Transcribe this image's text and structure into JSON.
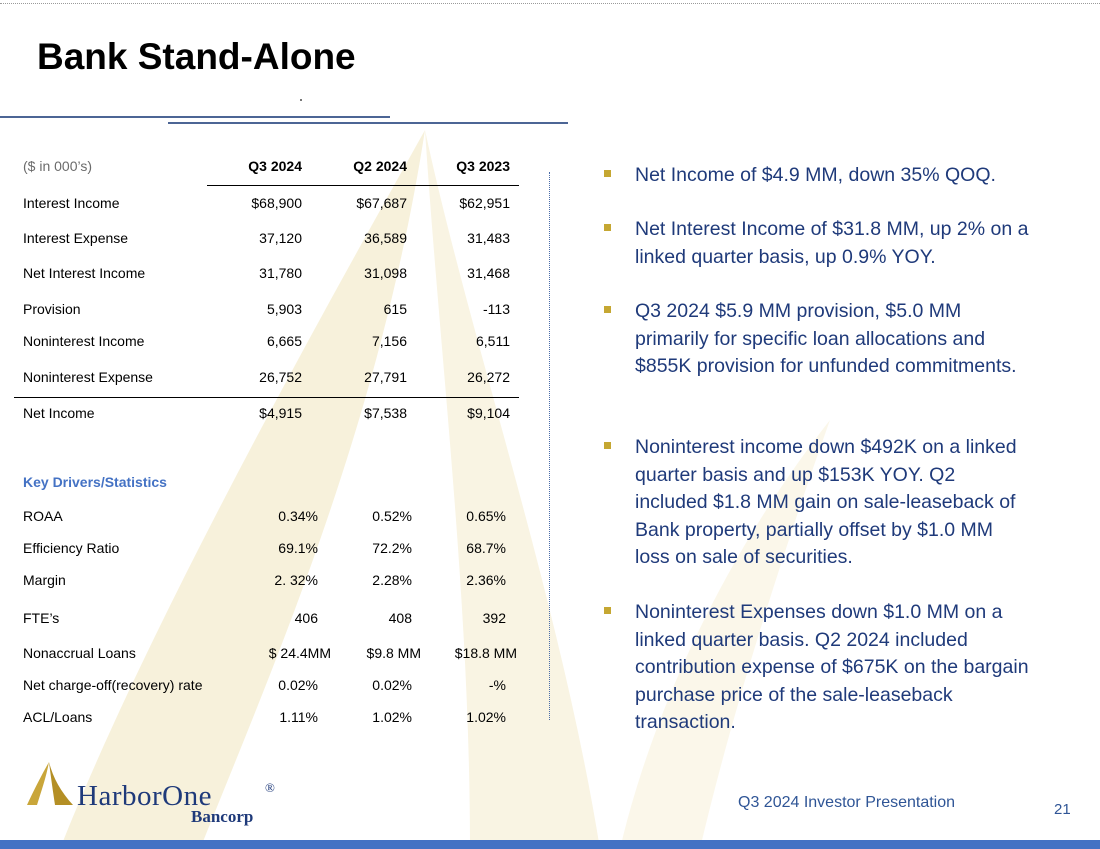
{
  "title": "Bank Stand-Alone",
  "table": {
    "unit_label": "($ in 000’s)",
    "columns": [
      "Q3 2024",
      "Q2 2024",
      "Q3 2023"
    ],
    "rows": [
      {
        "label": "Interest Income",
        "values": [
          "$68,900",
          "$67,687",
          "$62,951"
        ]
      },
      {
        "label": "Interest Expense",
        "values": [
          "37,120",
          "36,589",
          "31,483"
        ]
      },
      {
        "label": "Net Interest Income",
        "values": [
          "31,780",
          "31,098",
          "31,468"
        ]
      },
      {
        "label": "Provision",
        "values": [
          "5,903",
          "615",
          "-113"
        ]
      },
      {
        "label": "Noninterest Income",
        "values": [
          "6,665",
          "7,156",
          "6,511"
        ]
      },
      {
        "label": "Noninterest Expense",
        "values": [
          "26,752",
          "27,791",
          "26,272"
        ]
      },
      {
        "label": "Net Income",
        "values": [
          "$4,915",
          "$7,538",
          "$9,104"
        ]
      }
    ]
  },
  "key_drivers": {
    "title": "Key Drivers/Statistics",
    "rows": [
      {
        "label": "ROAA",
        "values": [
          "0.34%",
          "0.52%",
          "0.65%"
        ]
      },
      {
        "label": "Efficiency Ratio",
        "values": [
          "69.1%",
          "72.2%",
          "68.7%"
        ]
      },
      {
        "label": "Margin",
        "values": [
          "2. 32%",
          "2.28%",
          "2.36%"
        ]
      },
      {
        "label": "FTE’s",
        "values": [
          "406",
          "408",
          "392"
        ]
      },
      {
        "label": "Nonaccrual Loans",
        "values": [
          "$ 24.4MM",
          "$9.8 MM",
          "$18.8 MM"
        ]
      },
      {
        "label": "Net charge-off(recovery) rate",
        "values": [
          "0.02%",
          "0.02%",
          "-%"
        ]
      },
      {
        "label": "ACL/Loans",
        "values": [
          "1.11%",
          "1.02%",
          "1.02%"
        ]
      }
    ]
  },
  "bullets": [
    "Net Income of $4.9 MM, down 35% QOQ.",
    "Net Interest Income of $31.8 MM, up 2% on a linked quarter basis, up 0.9% YOY.",
    "Q3 2024 $5.9 MM provision, $5.0 MM primarily for specific loan allocations and $855K provision for unfunded commitments.",
    "Noninterest income down $492K on a linked quarter basis and up $153K YOY. Q2 included $1.8 MM gain on sale-leaseback of  Bank property, partially offset by $1.0 MM loss on sale of securities.",
    "Noninterest Expenses down $1.0 MM on a linked quarter basis. Q2 2024 included contribution expense of $675K on the bargain purchase price of the sale-leaseback transaction."
  ],
  "logo": {
    "name": "HarborOne",
    "reg": "®",
    "sub": "Bancorp"
  },
  "footer": {
    "text": "Q3 2024 Investor Presentation",
    "page": "21"
  },
  "colors": {
    "accent_blue": "#1f3a7a",
    "bullet_gold": "#c5a732",
    "watermark": "#f5efd6",
    "bar_blue": "#4472c4"
  }
}
